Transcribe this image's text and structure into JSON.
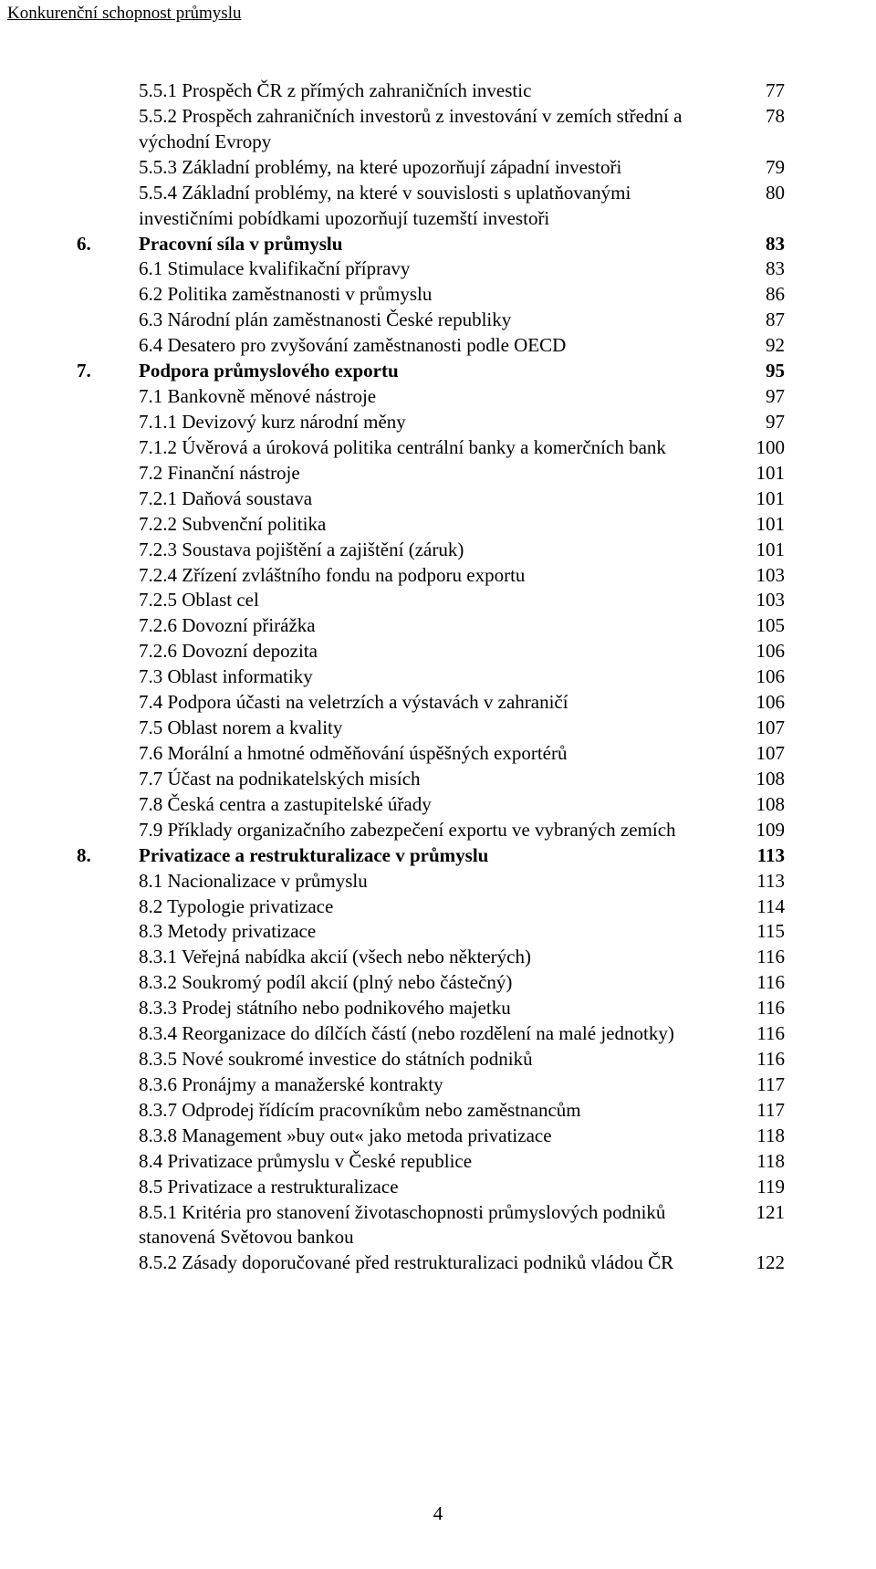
{
  "running_head": "Konkurenční schopnost průmyslu",
  "page_number": "4",
  "toc": [
    {
      "chap": "",
      "bold": false,
      "label": "5.5.1 Prospěch ČR z přímých zahraničních investic",
      "page": "77"
    },
    {
      "chap": "",
      "bold": false,
      "label": "5.5.2 Prospěch zahraničních investorů z investování v zemích střední a východní Evropy",
      "page": "78"
    },
    {
      "chap": "",
      "bold": false,
      "label": "5.5.3 Základní problémy, na které upozorňují západní investoři",
      "page": "79"
    },
    {
      "chap": "",
      "bold": false,
      "label": "5.5.4 Základní problémy, na které v souvislosti s uplatňovanými investičními pobídkami upozorňují tuzemští investoři",
      "page": "80"
    },
    {
      "chap": "6.",
      "bold": true,
      "label": "Pracovní síla v průmyslu",
      "page": "83"
    },
    {
      "chap": "",
      "bold": false,
      "label": "6.1 Stimulace kvalifikační přípravy",
      "page": "83"
    },
    {
      "chap": "",
      "bold": false,
      "label": "6.2 Politika zaměstnanosti v průmyslu",
      "page": "86"
    },
    {
      "chap": "",
      "bold": false,
      "label": "6.3 Národní plán zaměstnanosti České republiky",
      "page": "87"
    },
    {
      "chap": "",
      "bold": false,
      "label": "6.4 Desatero pro zvyšování zaměstnanosti podle OECD",
      "page": "92"
    },
    {
      "chap": "7.",
      "bold": true,
      "label": "Podpora průmyslového exportu",
      "page": "95"
    },
    {
      "chap": "",
      "bold": false,
      "label": "7.1 Bankovně měnové nástroje",
      "page": "97"
    },
    {
      "chap": "",
      "bold": false,
      "label": "7.1.1 Devizový kurz národní měny",
      "page": "97"
    },
    {
      "chap": "",
      "bold": false,
      "label": "7.1.2 Úvěrová a úroková politika centrální banky a komerčních bank",
      "page": "100"
    },
    {
      "chap": "",
      "bold": false,
      "label": "7.2 Finanční nástroje",
      "page": "101"
    },
    {
      "chap": "",
      "bold": false,
      "label": "7.2.1 Daňová soustava",
      "page": "101"
    },
    {
      "chap": "",
      "bold": false,
      "label": "7.2.2 Subvenční politika",
      "page": "101"
    },
    {
      "chap": "",
      "bold": false,
      "label": "7.2.3 Soustava pojištění a zajištění (záruk)",
      "page": "101"
    },
    {
      "chap": "",
      "bold": false,
      "label": "7.2.4 Zřízení zvláštního fondu na podporu exportu",
      "page": "103"
    },
    {
      "chap": "",
      "bold": false,
      "label": "7.2.5 Oblast cel",
      "page": "103"
    },
    {
      "chap": "",
      "bold": false,
      "label": "7.2.6 Dovozní přirážka",
      "page": "105"
    },
    {
      "chap": "",
      "bold": false,
      "label": "7.2.6 Dovozní depozita",
      "page": "106"
    },
    {
      "chap": "",
      "bold": false,
      "label": "7.3 Oblast informatiky",
      "page": "106"
    },
    {
      "chap": "",
      "bold": false,
      "label": "7.4 Podpora účasti na veletrzích a výstavách v zahraničí",
      "page": "106"
    },
    {
      "chap": "",
      "bold": false,
      "label": "7.5 Oblast norem a kvality",
      "page": "107"
    },
    {
      "chap": "",
      "bold": false,
      "label": "7.6 Morální a hmotné odměňování úspěšných exportérů",
      "page": "107"
    },
    {
      "chap": "",
      "bold": false,
      "label": "7.7 Účast na podnikatelských misích",
      "page": "108"
    },
    {
      "chap": "",
      "bold": false,
      "label": "7.8 Česká centra a zastupitelské úřady",
      "page": "108"
    },
    {
      "chap": "",
      "bold": false,
      "label": "7.9 Příklady organizačního zabezpečení exportu ve vybraných zemích",
      "page": "109"
    },
    {
      "chap": "8.",
      "bold": true,
      "label": "Privatizace a restrukturalizace v průmyslu",
      "page": "113"
    },
    {
      "chap": "",
      "bold": false,
      "label": "8.1 Nacionalizace v průmyslu",
      "page": "113"
    },
    {
      "chap": "",
      "bold": false,
      "label": "8.2 Typologie privatizace",
      "page": "114"
    },
    {
      "chap": "",
      "bold": false,
      "label": "8.3 Metody privatizace",
      "page": "115"
    },
    {
      "chap": "",
      "bold": false,
      "label": "8.3.1 Veřejná nabídka akcií (všech nebo některých)",
      "page": "116"
    },
    {
      "chap": "",
      "bold": false,
      "label": "8.3.2 Soukromý podíl akcií (plný nebo částečný)",
      "page": "116"
    },
    {
      "chap": "",
      "bold": false,
      "label": "8.3.3 Prodej státního nebo podnikového majetku",
      "page": "116"
    },
    {
      "chap": "",
      "bold": false,
      "label": "8.3.4 Reorganizace do dílčích částí (nebo rozdělení na malé jednotky)",
      "page": "116"
    },
    {
      "chap": "",
      "bold": false,
      "label": "8.3.5 Nové soukromé investice do státních podniků",
      "page": "116"
    },
    {
      "chap": "",
      "bold": false,
      "label": "8.3.6 Pronájmy a manažerské kontrakty",
      "page": "117"
    },
    {
      "chap": "",
      "bold": false,
      "label": "8.3.7 Odprodej řídícím pracovníkům nebo zaměstnancům",
      "page": "117"
    },
    {
      "chap": "",
      "bold": false,
      "label": "8.3.8 Management »buy out« jako metoda privatizace",
      "page": "118"
    },
    {
      "chap": "",
      "bold": false,
      "label": "8.4 Privatizace průmyslu v České republice",
      "page": "118"
    },
    {
      "chap": "",
      "bold": false,
      "label": "8.5 Privatizace a restrukturalizace",
      "page": "119"
    },
    {
      "chap": "",
      "bold": false,
      "label": "8.5.1 Kritéria pro stanovení životaschopnosti průmyslových podniků stanovená Světovou bankou",
      "page": "121"
    },
    {
      "chap": "",
      "bold": false,
      "label": "8.5.2 Zásady doporučované před restrukturalizaci podniků vládou ČR",
      "page": "122"
    }
  ]
}
